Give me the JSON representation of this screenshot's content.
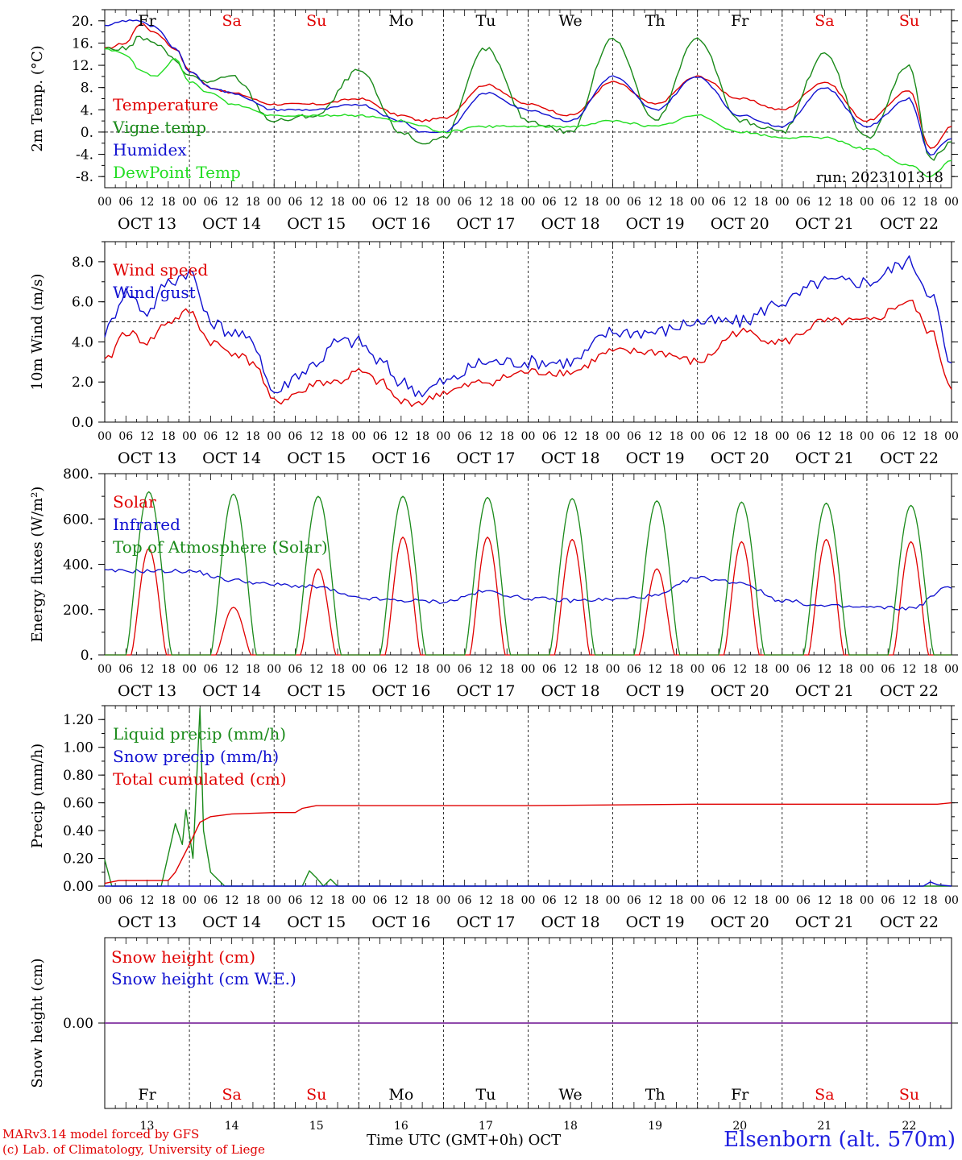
{
  "footer": {
    "model": "MARv3.14 model forced by GFS",
    "credit": "(c) Lab. of Climatology, University of Liege",
    "time_label": "Time UTC (GMT+0h) OCT",
    "station": "Elsenborn (alt. 570m)"
  },
  "colors": {
    "red": "#e00000",
    "green": "#1a8a1a",
    "blue": "#1010d0",
    "lightgreen": "#22dd22",
    "purple": "#8030a0"
  },
  "chart_data": [
    {
      "type": "line",
      "ylabel": "2m Temp. (°C)",
      "ylim": [
        -10,
        22
      ],
      "yticks": [
        -8,
        -4,
        0,
        4,
        8,
        12,
        16,
        20
      ],
      "ytick_labels": [
        "-8.",
        "-4.",
        "0.",
        "4.",
        "8.",
        "12.",
        "16.",
        "20."
      ],
      "hline": 0,
      "run": "run: 2023101318",
      "days_top": [
        "Fr",
        "Sa",
        "Su",
        "Mo",
        "Tu",
        "We",
        "Th",
        "Fr",
        "Sa",
        "Su"
      ],
      "x_hours": [
        0,
        6,
        10,
        14,
        20,
        24,
        30,
        36,
        48,
        60,
        72,
        84,
        90,
        96,
        108,
        120,
        132,
        144,
        156,
        168,
        180,
        192,
        204,
        216,
        228,
        234,
        240
      ],
      "series": [
        {
          "name": "Temperature",
          "color": "red",
          "values": [
            15,
            16,
            19.5,
            18,
            15,
            11,
            8,
            7,
            5,
            5,
            6,
            3,
            2,
            2.5,
            8.5,
            5,
            3,
            9,
            5,
            10,
            6,
            4,
            9,
            2,
            7.5,
            -3,
            1
          ]
        },
        {
          "name": "Vigne temp",
          "color": "green",
          "values": [
            15,
            15,
            17,
            16,
            13,
            10,
            9,
            10,
            2,
            3,
            11,
            0,
            -2,
            -1,
            15,
            2,
            0,
            17,
            2,
            17,
            2,
            0,
            14,
            -1,
            12,
            -5,
            -2
          ]
        },
        {
          "name": "Humidex",
          "color": "blue",
          "values": [
            19,
            20,
            20,
            19,
            15,
            11,
            8,
            7,
            4,
            4,
            5,
            2,
            0,
            0,
            7,
            4,
            2,
            10,
            4,
            10,
            3,
            1,
            8,
            1,
            6,
            -4,
            -1
          ]
        },
        {
          "name": "DewPoint Temp",
          "color": "lightgreen",
          "values": [
            15,
            14,
            11,
            10,
            13,
            9,
            7,
            5,
            3,
            3,
            3,
            2,
            1,
            0,
            1,
            1,
            1,
            2,
            1,
            3,
            0,
            -1,
            -1,
            -3,
            -6,
            -8,
            -5
          ]
        }
      ]
    },
    {
      "type": "line",
      "ylabel": "10m Wind (m/s)",
      "ylim": [
        0,
        9
      ],
      "yticks": [
        0,
        2,
        4,
        6,
        8
      ],
      "ytick_labels": [
        "0.0",
        "2.0",
        "4.0",
        "6.0",
        "8.0"
      ],
      "hline": 5,
      "x_hours": [
        0,
        6,
        12,
        18,
        24,
        30,
        36,
        42,
        48,
        56,
        60,
        66,
        72,
        78,
        84,
        90,
        96,
        108,
        120,
        132,
        144,
        156,
        168,
        180,
        192,
        204,
        216,
        228,
        234,
        240
      ],
      "series": [
        {
          "name": "Wind speed",
          "color": "red",
          "values": [
            3,
            4.5,
            4,
            5,
            5.5,
            4,
            3.5,
            3,
            1,
            1.5,
            2,
            2,
            2.5,
            2,
            1,
            1,
            1.5,
            2,
            2.5,
            2.5,
            3.5,
            3.5,
            3,
            4.5,
            4,
            5,
            5,
            6,
            4.5,
            1.8
          ]
        },
        {
          "name": "Wind gust",
          "color": "blue",
          "values": [
            4.5,
            6.5,
            5.5,
            7,
            7.5,
            5,
            4.5,
            4,
            1.5,
            2.5,
            3,
            4,
            4,
            3,
            2,
            1.5,
            2,
            3,
            3,
            3,
            4.5,
            4.5,
            5,
            5,
            6,
            7,
            7,
            8,
            6.5,
            2.8
          ]
        }
      ]
    },
    {
      "type": "line",
      "ylabel": "Energy fluxes (W/m²)",
      "ylim": [
        0,
        800
      ],
      "yticks": [
        0,
        200,
        400,
        600,
        800
      ],
      "ytick_labels": [
        "0.",
        "200.",
        "400.",
        "600.",
        "800."
      ],
      "x_hours": [
        0,
        12,
        24,
        36,
        48,
        60,
        72,
        84,
        96,
        108,
        120,
        132,
        144,
        156,
        168,
        180,
        192,
        204,
        216,
        228,
        240
      ],
      "series": [
        {
          "name": "Solar",
          "color": "red",
          "peaks": [
            470,
            210,
            380,
            520,
            520,
            510,
            380,
            500,
            510,
            500
          ]
        },
        {
          "name": "Infrared",
          "color": "blue",
          "values": [
            370,
            370,
            370,
            330,
            310,
            300,
            250,
            240,
            235,
            280,
            250,
            240,
            245,
            260,
            340,
            320,
            240,
            215,
            210,
            205,
            300
          ]
        },
        {
          "name": "Top of Atmosphere (Solar)",
          "color": "green",
          "peaks": [
            720,
            710,
            700,
            700,
            695,
            690,
            680,
            675,
            670,
            660
          ]
        }
      ]
    },
    {
      "type": "line",
      "ylabel": "Precip (mm/h)",
      "ylim": [
        0,
        1.3
      ],
      "yticks": [
        0,
        0.2,
        0.4,
        0.6,
        0.8,
        1.0,
        1.2
      ],
      "ytick_labels": [
        "0.00",
        "0.20",
        "0.40",
        "0.60",
        "0.80",
        "1.00",
        "1.20"
      ],
      "series": [
        {
          "name": "Liquid precip (mm/h)",
          "color": "green",
          "x_hours": [
            0,
            2,
            4,
            16,
            20,
            22,
            23,
            25,
            27,
            28,
            30,
            32,
            34,
            36,
            40,
            50,
            56,
            58,
            60,
            62,
            64,
            66,
            240
          ],
          "values": [
            0.19,
            0,
            0,
            0,
            0.45,
            0.3,
            0.55,
            0.2,
            1.28,
            0.4,
            0.1,
            0.05,
            0,
            0,
            0,
            0,
            0,
            0.11,
            0.06,
            0,
            0.05,
            0,
            0
          ]
        },
        {
          "name": "Snow precip (mm/h)",
          "color": "blue",
          "x_hours": [
            0,
            232,
            234,
            236,
            240
          ],
          "values": [
            0,
            0,
            0.03,
            0.01,
            0
          ]
        },
        {
          "name": "Total cumulated (cm)",
          "color": "red",
          "x_hours": [
            0,
            4,
            18,
            20,
            24,
            27,
            30,
            36,
            48,
            54,
            56,
            60,
            72,
            120,
            168,
            216,
            236,
            240
          ],
          "values": [
            0.02,
            0.04,
            0.04,
            0.1,
            0.3,
            0.46,
            0.5,
            0.52,
            0.53,
            0.53,
            0.56,
            0.58,
            0.58,
            0.58,
            0.59,
            0.59,
            0.59,
            0.6
          ]
        }
      ]
    },
    {
      "type": "line",
      "ylabel": "Snow height (cm)",
      "ylim": [
        -1,
        1
      ],
      "yticks": [
        0
      ],
      "ytick_labels": [
        "0.00"
      ],
      "days_bottom": [
        "Fr",
        "Sa",
        "Su",
        "Mo",
        "Tu",
        "We",
        "Th",
        "Fr",
        "Sa",
        "Su"
      ],
      "day_numbers": [
        "13",
        "14",
        "15",
        "16",
        "17",
        "18",
        "19",
        "20",
        "21",
        "22"
      ],
      "series": [
        {
          "name": "Snow height (cm)",
          "color": "red",
          "x_hours": [
            0,
            240
          ],
          "values": [
            0,
            0
          ]
        },
        {
          "name": "Snow height (cm W.E.)",
          "color": "blue",
          "x_hours": [
            0,
            240
          ],
          "values": [
            0,
            0
          ]
        }
      ]
    }
  ],
  "xaxis": {
    "hour_labels": [
      "00",
      "06",
      "12",
      "18"
    ],
    "date_labels": [
      "OCT 13",
      "OCT 14",
      "OCT 15",
      "OCT 16",
      "OCT 17",
      "OCT 18",
      "OCT 19",
      "OCT 20",
      "OCT 21",
      "OCT 22"
    ],
    "weekend_days": [
      "Sa",
      "Su"
    ]
  }
}
